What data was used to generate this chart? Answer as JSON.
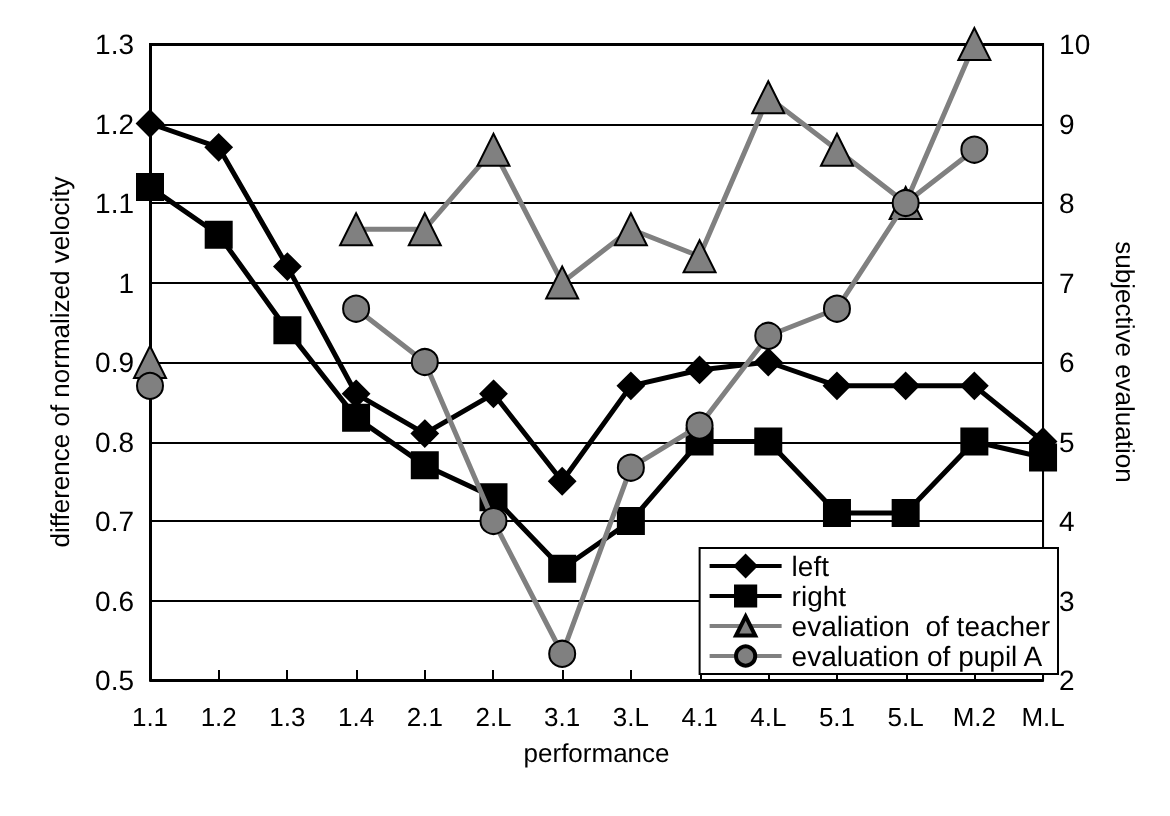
{
  "chart_data": {
    "type": "line",
    "xlabel": "performance",
    "ylabel": "difference of normalized velocity",
    "y2label": "subjective evaluation",
    "categories": [
      "1.1",
      "1.2",
      "1.3",
      "1.4",
      "2.1",
      "2.L",
      "3.1",
      "3.L",
      "4.1",
      "4.L",
      "5.1",
      "5.L",
      "M.2",
      "M.L"
    ],
    "series": [
      {
        "name": "left",
        "color": "#000000",
        "marker": "diamond",
        "values": [
          1.2,
          1.17,
          1.02,
          0.86,
          0.81,
          0.86,
          0.75,
          0.87,
          0.89,
          0.9,
          0.87,
          0.87,
          0.87,
          0.8
        ]
      },
      {
        "name": "right",
        "color": "#000000",
        "marker": "square",
        "values": [
          1.12,
          1.06,
          0.94,
          0.83,
          0.77,
          0.73,
          0.64,
          0.7,
          0.8,
          0.8,
          0.71,
          0.71,
          0.8,
          0.78
        ]
      },
      {
        "name": "evaliation  of teacher",
        "color": "#808080",
        "marker": "triangle",
        "axis": "y2",
        "values": [
          6,
          null,
          null,
          7.67,
          7.67,
          8.67,
          7,
          7.67,
          7.33,
          9.33,
          8.67,
          8,
          10,
          null
        ]
      },
      {
        "name": "evaluation of pupil A",
        "color": "#808080",
        "marker": "circle",
        "axis": "y2",
        "values": [
          5.7,
          null,
          null,
          6.67,
          6,
          4,
          2.33,
          4.67,
          5.2,
          6.33,
          6.67,
          8,
          8.67,
          null
        ]
      }
    ],
    "ylim": [
      0.5,
      1.3
    ],
    "yticks": [
      0.5,
      0.6,
      0.7,
      0.8,
      0.9,
      1,
      1.1,
      1.2,
      1.3
    ],
    "y2lim": [
      2,
      10
    ],
    "y2ticks": [
      2,
      3,
      4,
      5,
      6,
      7,
      8,
      9,
      10
    ],
    "grid": "y",
    "legend": "bottom right"
  }
}
